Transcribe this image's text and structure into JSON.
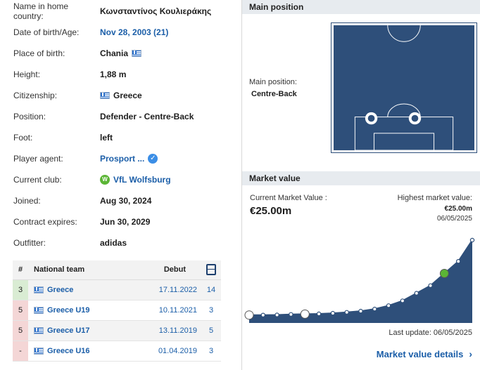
{
  "profile": [
    {
      "label": "Name in home country:",
      "value": "Κωνσταντίνος Κουλιεράκης",
      "kind": "plain-bold"
    },
    {
      "label": "Date of birth/Age:",
      "value": "Nov 28, 2003 (21)",
      "kind": "link"
    },
    {
      "label": "Place of birth:",
      "value": "Chania",
      "kind": "flag-after"
    },
    {
      "label": "Height:",
      "value": "1,88 m",
      "kind": "bold"
    },
    {
      "label": "Citizenship:",
      "value": "Greece",
      "kind": "flag-before"
    },
    {
      "label": "Position:",
      "value": "Defender - Centre-Back",
      "kind": "bold"
    },
    {
      "label": "Foot:",
      "value": "left",
      "kind": "bold"
    },
    {
      "label": "Player agent:",
      "value": "Prosport ...",
      "kind": "agent"
    },
    {
      "label": "Current club:",
      "value": "VfL Wolfsburg",
      "kind": "club"
    },
    {
      "label": "Joined:",
      "value": "Aug 30, 2024",
      "kind": "bold"
    },
    {
      "label": "Contract expires:",
      "value": "Jun 30, 2029",
      "kind": "bold"
    },
    {
      "label": "Outfitter:",
      "value": "adidas",
      "kind": "bold"
    }
  ],
  "national_team": {
    "headers": {
      "num": "#",
      "team": "National team",
      "debut": "Debut"
    },
    "rows": [
      {
        "num": "3",
        "team": "Greece",
        "debut": "17.11.2022",
        "caps": "14",
        "status": "green"
      },
      {
        "num": "5",
        "team": "Greece U19",
        "debut": "10.11.2021",
        "caps": "3",
        "status": "red"
      },
      {
        "num": "5",
        "team": "Greece U17",
        "debut": "13.11.2019",
        "caps": "5",
        "status": "red"
      },
      {
        "num": "-",
        "team": "Greece U16",
        "debut": "01.04.2019",
        "caps": "3",
        "status": "red"
      }
    ]
  },
  "main_position": {
    "section_title": "Main position",
    "label": "Main position:",
    "value": "Centre-Back"
  },
  "market_value": {
    "section_title": "Market value",
    "current_label": "Current Market Value :",
    "current_value": "€25.00m",
    "highest_label": "Highest market value:",
    "highest_value": "€25.00m",
    "highest_date": "06/05/2025",
    "last_update": "Last update: 06/05/2025",
    "details_link": "Market value details"
  },
  "colors": {
    "accent": "#1b5ea8",
    "pitch": "#2e4f7a",
    "area": "#2e4f7a"
  },
  "chart_data": {
    "type": "area",
    "title": "",
    "xlabel": "",
    "ylabel": "",
    "series": [
      {
        "values": [
          0.3,
          0.3,
          0.35,
          0.5,
          0.6,
          0.7,
          0.9,
          1.2,
          1.6,
          2.3,
          3.4,
          5.0,
          7.5,
          10.0,
          14.0,
          18.0,
          25.0
        ]
      }
    ],
    "ylim": [
      0,
      25
    ],
    "grid": false
  }
}
